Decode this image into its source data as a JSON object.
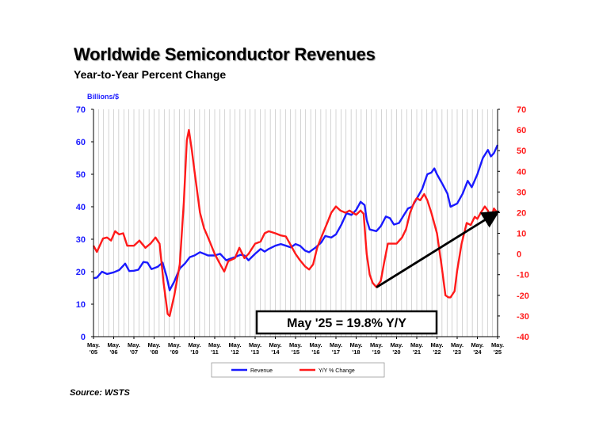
{
  "chart_data": {
    "type": "line",
    "title": "Worldwide Semiconductor Revenues",
    "subtitle": "Year-to-Year Percent Change",
    "source": "Source: WSTS",
    "ylabel_left": "Billions/$",
    "ylim_left": [
      0,
      70
    ],
    "yticks_left": [
      "0",
      "10",
      "20",
      "30",
      "40",
      "50",
      "60",
      "70"
    ],
    "ylim_right": [
      -40,
      70
    ],
    "yticks_right": [
      "-40",
      "-30",
      "-20",
      "-10",
      "0",
      "10",
      "20",
      "30",
      "40",
      "50",
      "60",
      "70"
    ],
    "x_range": [
      2005.33,
      2025.33
    ],
    "xticks": [
      {
        "x": 2005.33,
        "month": "May.",
        "year": "'05"
      },
      {
        "x": 2006.33,
        "month": "May.",
        "year": "'06"
      },
      {
        "x": 2007.33,
        "month": "May.",
        "year": "'07"
      },
      {
        "x": 2008.33,
        "month": "May.",
        "year": "'08"
      },
      {
        "x": 2009.33,
        "month": "May.",
        "year": "'09"
      },
      {
        "x": 2010.33,
        "month": "May.",
        "year": "'10"
      },
      {
        "x": 2011.33,
        "month": "May.",
        "year": "'11"
      },
      {
        "x": 2012.33,
        "month": "May.",
        "year": "'12"
      },
      {
        "x": 2013.33,
        "month": "May.",
        "year": "'13"
      },
      {
        "x": 2014.33,
        "month": "May.",
        "year": "'14"
      },
      {
        "x": 2015.33,
        "month": "May.",
        "year": "'15"
      },
      {
        "x": 2016.33,
        "month": "May.",
        "year": "'16"
      },
      {
        "x": 2017.33,
        "month": "May.",
        "year": "'17"
      },
      {
        "x": 2018.33,
        "month": "May.",
        "year": "'18"
      },
      {
        "x": 2019.33,
        "month": "May.",
        "year": "'19"
      },
      {
        "x": 2020.33,
        "month": "May.",
        "year": "'20"
      },
      {
        "x": 2021.33,
        "month": "May.",
        "year": "'21"
      },
      {
        "x": 2022.33,
        "month": "May.",
        "year": "'22"
      },
      {
        "x": 2023.33,
        "month": "May.",
        "year": "'23"
      },
      {
        "x": 2024.33,
        "month": "May.",
        "year": "'24"
      },
      {
        "x": 2025.33,
        "month": "May.",
        "year": "'25"
      }
    ],
    "grid": true,
    "series": [
      {
        "name": "Revenue",
        "color": "#1a1aff",
        "axis": "left",
        "points": [
          [
            2005.33,
            18.0
          ],
          [
            2005.5,
            18.2
          ],
          [
            2005.75,
            20.0
          ],
          [
            2006.0,
            19.3
          ],
          [
            2006.33,
            19.8
          ],
          [
            2006.6,
            20.5
          ],
          [
            2006.9,
            22.5
          ],
          [
            2007.1,
            20.2
          ],
          [
            2007.33,
            20.3
          ],
          [
            2007.55,
            20.6
          ],
          [
            2007.8,
            23.0
          ],
          [
            2008.0,
            22.8
          ],
          [
            2008.2,
            20.8
          ],
          [
            2008.5,
            21.5
          ],
          [
            2008.75,
            22.8
          ],
          [
            2008.95,
            18.5
          ],
          [
            2009.1,
            14.3
          ],
          [
            2009.33,
            17.0
          ],
          [
            2009.6,
            21.0
          ],
          [
            2009.85,
            22.5
          ],
          [
            2010.1,
            24.5
          ],
          [
            2010.33,
            25.0
          ],
          [
            2010.6,
            26.0
          ],
          [
            2010.8,
            25.5
          ],
          [
            2011.0,
            25.0
          ],
          [
            2011.33,
            25.0
          ],
          [
            2011.6,
            25.5
          ],
          [
            2011.9,
            23.5
          ],
          [
            2012.1,
            24.0
          ],
          [
            2012.33,
            24.5
          ],
          [
            2012.6,
            25.2
          ],
          [
            2012.8,
            25.0
          ],
          [
            2013.0,
            23.5
          ],
          [
            2013.33,
            25.5
          ],
          [
            2013.6,
            27.0
          ],
          [
            2013.8,
            26.2
          ],
          [
            2014.0,
            27.0
          ],
          [
            2014.33,
            28.0
          ],
          [
            2014.6,
            28.5
          ],
          [
            2014.85,
            28.0
          ],
          [
            2015.1,
            27.5
          ],
          [
            2015.33,
            28.5
          ],
          [
            2015.55,
            28.0
          ],
          [
            2015.8,
            26.5
          ],
          [
            2016.0,
            26.0
          ],
          [
            2016.33,
            27.5
          ],
          [
            2016.6,
            29.0
          ],
          [
            2016.8,
            31.0
          ],
          [
            2017.1,
            30.5
          ],
          [
            2017.33,
            31.5
          ],
          [
            2017.6,
            34.5
          ],
          [
            2017.85,
            38.0
          ],
          [
            2018.1,
            37.5
          ],
          [
            2018.33,
            39.0
          ],
          [
            2018.55,
            41.5
          ],
          [
            2018.75,
            40.5
          ],
          [
            2018.85,
            36.0
          ],
          [
            2019.0,
            33.0
          ],
          [
            2019.33,
            32.5
          ],
          [
            2019.55,
            34.0
          ],
          [
            2019.8,
            37.0
          ],
          [
            2020.0,
            36.5
          ],
          [
            2020.2,
            34.5
          ],
          [
            2020.45,
            35.0
          ],
          [
            2020.7,
            37.5
          ],
          [
            2020.9,
            39.5
          ],
          [
            2021.1,
            40.0
          ],
          [
            2021.33,
            42.5
          ],
          [
            2021.6,
            45.5
          ],
          [
            2021.85,
            50.0
          ],
          [
            2022.05,
            50.5
          ],
          [
            2022.2,
            51.8
          ],
          [
            2022.33,
            50.0
          ],
          [
            2022.6,
            47.0
          ],
          [
            2022.85,
            44.0
          ],
          [
            2023.0,
            40.0
          ],
          [
            2023.33,
            41.0
          ],
          [
            2023.6,
            44.0
          ],
          [
            2023.85,
            48.0
          ],
          [
            2024.05,
            46.0
          ],
          [
            2024.33,
            50.0
          ],
          [
            2024.6,
            55.0
          ],
          [
            2024.85,
            57.5
          ],
          [
            2025.0,
            55.5
          ],
          [
            2025.15,
            56.5
          ],
          [
            2025.33,
            59.0
          ]
        ]
      },
      {
        "name": "Y/Y % Change",
        "color": "#ff1a1a",
        "axis": "right",
        "points": [
          [
            2005.33,
            4.0
          ],
          [
            2005.5,
            1.0
          ],
          [
            2005.8,
            7.5
          ],
          [
            2006.0,
            8.0
          ],
          [
            2006.2,
            6.5
          ],
          [
            2006.4,
            11.0
          ],
          [
            2006.6,
            9.5
          ],
          [
            2006.8,
            10.0
          ],
          [
            2007.0,
            4.0
          ],
          [
            2007.33,
            4.0
          ],
          [
            2007.6,
            6.5
          ],
          [
            2007.9,
            3.0
          ],
          [
            2008.15,
            5.0
          ],
          [
            2008.4,
            8.0
          ],
          [
            2008.6,
            5.0
          ],
          [
            2008.8,
            -14.0
          ],
          [
            2009.0,
            -29.0
          ],
          [
            2009.1,
            -30.0
          ],
          [
            2009.33,
            -20.0
          ],
          [
            2009.6,
            -5.0
          ],
          [
            2009.8,
            25.0
          ],
          [
            2009.95,
            55.0
          ],
          [
            2010.05,
            60.0
          ],
          [
            2010.2,
            50.0
          ],
          [
            2010.33,
            40.0
          ],
          [
            2010.6,
            20.0
          ],
          [
            2010.8,
            12.5
          ],
          [
            2011.0,
            8.0
          ],
          [
            2011.33,
            0.0
          ],
          [
            2011.6,
            -5.0
          ],
          [
            2011.8,
            -8.5
          ],
          [
            2012.0,
            -3.5
          ],
          [
            2012.33,
            -2.0
          ],
          [
            2012.55,
            3.0
          ],
          [
            2012.8,
            -2.0
          ],
          [
            2013.0,
            0.0
          ],
          [
            2013.33,
            5.0
          ],
          [
            2013.6,
            6.0
          ],
          [
            2013.8,
            10.0
          ],
          [
            2014.0,
            11.0
          ],
          [
            2014.33,
            10.0
          ],
          [
            2014.6,
            9.0
          ],
          [
            2014.85,
            8.5
          ],
          [
            2015.05,
            5.0
          ],
          [
            2015.33,
            0.0
          ],
          [
            2015.55,
            -3.0
          ],
          [
            2015.8,
            -6.0
          ],
          [
            2016.0,
            -7.5
          ],
          [
            2016.2,
            -5.0
          ],
          [
            2016.4,
            3.0
          ],
          [
            2016.6,
            8.0
          ],
          [
            2016.9,
            15.0
          ],
          [
            2017.1,
            20.0
          ],
          [
            2017.33,
            23.0
          ],
          [
            2017.55,
            21.0
          ],
          [
            2017.8,
            20.0
          ],
          [
            2018.0,
            21.0
          ],
          [
            2018.33,
            19.0
          ],
          [
            2018.55,
            21.0
          ],
          [
            2018.7,
            19.5
          ],
          [
            2018.85,
            0.0
          ],
          [
            2019.0,
            -10.0
          ],
          [
            2019.15,
            -14.0
          ],
          [
            2019.33,
            -16.0
          ],
          [
            2019.55,
            -13.0
          ],
          [
            2019.7,
            -5.0
          ],
          [
            2019.9,
            5.0
          ],
          [
            2020.1,
            5.0
          ],
          [
            2020.33,
            5.0
          ],
          [
            2020.6,
            8.0
          ],
          [
            2020.8,
            12.0
          ],
          [
            2021.0,
            20.0
          ],
          [
            2021.2,
            25.0
          ],
          [
            2021.33,
            27.0
          ],
          [
            2021.5,
            26.0
          ],
          [
            2021.7,
            29.0
          ],
          [
            2021.85,
            26.0
          ],
          [
            2022.05,
            20.0
          ],
          [
            2022.33,
            10.0
          ],
          [
            2022.55,
            -5.0
          ],
          [
            2022.75,
            -20.0
          ],
          [
            2022.9,
            -21.0
          ],
          [
            2023.0,
            -21.0
          ],
          [
            2023.2,
            -18.0
          ],
          [
            2023.33,
            -8.0
          ],
          [
            2023.55,
            5.0
          ],
          [
            2023.8,
            15.0
          ],
          [
            2024.0,
            14.0
          ],
          [
            2024.2,
            18.0
          ],
          [
            2024.33,
            17.0
          ],
          [
            2024.5,
            20.0
          ],
          [
            2024.7,
            23.0
          ],
          [
            2024.85,
            21.0
          ],
          [
            2025.0,
            17.0
          ],
          [
            2025.15,
            22.0
          ],
          [
            2025.33,
            19.8
          ]
        ]
      }
    ],
    "annotation": {
      "text": "May '25 = 19.8% Y/Y"
    },
    "arrow": {
      "from": [
        2019.33,
        3.0
      ],
      "to": [
        2025.33,
        19.8
      ]
    },
    "legend": {
      "placement": "bottom"
    }
  }
}
